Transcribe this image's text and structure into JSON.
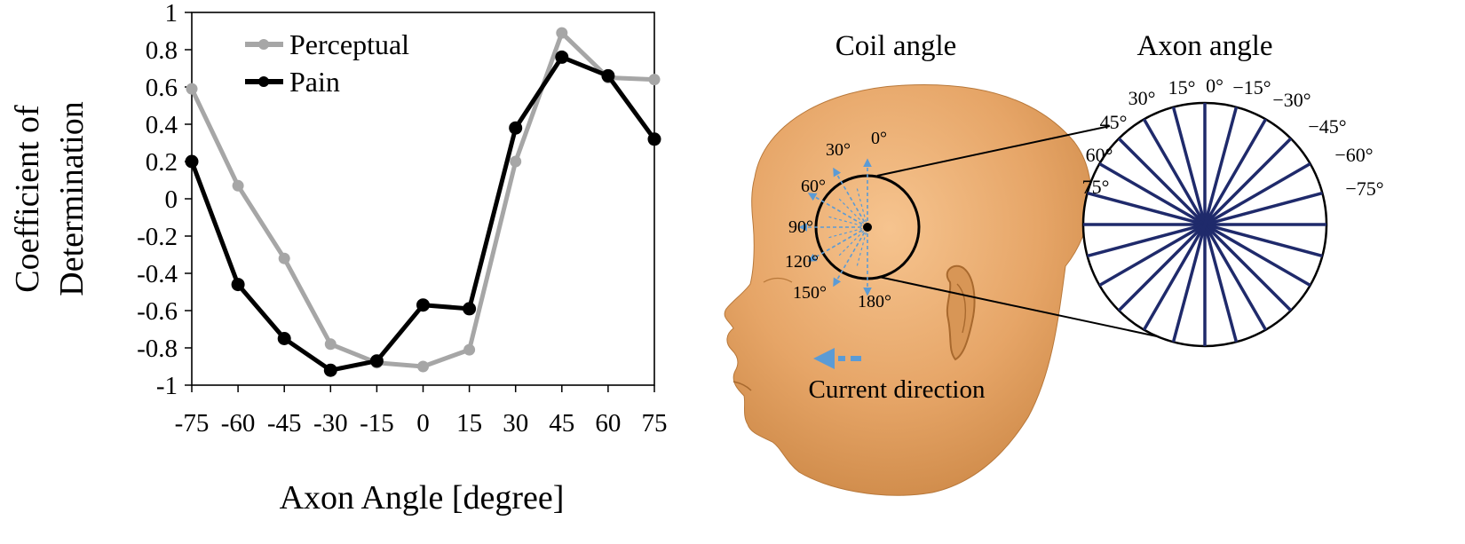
{
  "chart_data": {
    "type": "line",
    "xlabel": "Axon Angle [degree]",
    "ylabel_lines": [
      "Coefficient of",
      "Determination"
    ],
    "x": [
      -75,
      -60,
      -45,
      -30,
      -15,
      0,
      15,
      30,
      45,
      60,
      75
    ],
    "xticks": [
      "-75",
      "-60",
      "-45",
      "-30",
      "-15",
      "0",
      "15",
      "30",
      "45",
      "60",
      "75"
    ],
    "ylim": [
      -1,
      1
    ],
    "yticks": [
      "1",
      "0.8",
      "0.6",
      "0.4",
      "0.2",
      "0",
      "-0.2",
      "-0.4",
      "-0.6",
      "-0.8",
      "-1"
    ],
    "ytick_values": [
      1,
      0.8,
      0.6,
      0.4,
      0.2,
      0,
      -0.2,
      -0.4,
      -0.6,
      -0.8,
      -1
    ],
    "grid": false,
    "legend_position": "top-left",
    "series": [
      {
        "name": "Perceptual",
        "color": "#a6a6a6",
        "values": [
          0.59,
          0.07,
          -0.32,
          -0.78,
          -0.88,
          -0.9,
          -0.81,
          0.2,
          0.89,
          0.65,
          0.64
        ]
      },
      {
        "name": "Pain",
        "color": "#000000",
        "values": [
          0.2,
          -0.46,
          -0.75,
          -0.92,
          -0.87,
          -0.57,
          -0.59,
          0.38,
          0.76,
          0.66,
          0.32
        ]
      }
    ]
  },
  "illustration": {
    "coil_title": "Coil angle",
    "axon_title": "Axon angle",
    "coil_angle_labels": [
      "0°",
      "30°",
      "60°",
      "90°",
      "120°",
      "150°",
      "180°"
    ],
    "axon_angle_labels": [
      "0°",
      "15°",
      "30°",
      "45°",
      "60°",
      "75°",
      "−15°",
      "−30°",
      "−45°",
      "−60°",
      "−75°"
    ],
    "current_label": "Current direction",
    "arrow_color": "#5b9bd5",
    "spoke_color": "#1f2a6b",
    "skin_color": "#e8a86a"
  }
}
